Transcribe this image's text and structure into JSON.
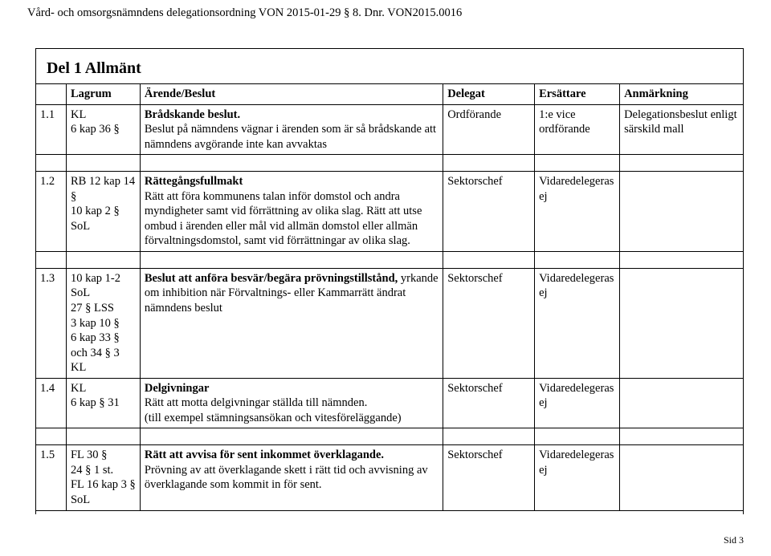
{
  "header_text": "Vård- och omsorgsnämndens delegationsordning VON 2015-01-29 § 8.  Dnr.  VON2015.0016",
  "section_title": "Del 1 Allmänt",
  "page_number": "Sid 3",
  "columns": {
    "c1": "",
    "c2": "Lagrum",
    "c3": "Ärende/Beslut",
    "c4": "Delegat",
    "c5": "Ersättare",
    "c6": "Anmärkning"
  },
  "rows": [
    {
      "num": "1.1",
      "lagrum": "KL\n6 kap 36 §",
      "title": "Brådskande beslut.",
      "body": "Beslut på nämndens vägnar i ärenden som är så brådskande att nämndens avgörande inte kan avvaktas",
      "delegat": "Ordförande",
      "ersattare": "1:e vice ordförande",
      "anmarkning": "Delegationsbeslut enligt särskild mall"
    },
    {
      "num": "1.2",
      "lagrum": "RB 12 kap 14 §\n10 kap 2 § SoL",
      "title": "Rättegångsfullmakt",
      "body": "Rätt att föra kommunens talan inför domstol och andra myndigheter samt vid förrättning av olika slag. Rätt att utse ombud i ärenden eller mål vid allmän domstol eller allmän förvaltningsdomstol, samt vid förrättningar av olika slag.",
      "delegat": "Sektorschef",
      "ersattare": "Vidaredelegeras ej",
      "anmarkning": ""
    },
    {
      "num": "1.3",
      "lagrum": "10 kap 1-2 SoL\n27 § LSS\n3 kap 10 §\n6 kap 33 § och 34 § 3 KL",
      "title": "Beslut att anföra besvär/begära prövningstillstånd,",
      "body": " yrkande om inhibition när Förvaltnings- eller Kammarrätt ändrat nämndens beslut",
      "delegat": "Sektorschef",
      "ersattare": "Vidaredelegeras ej",
      "anmarkning": ""
    },
    {
      "num": "1.4",
      "lagrum": "KL\n6 kap § 31",
      "title": "Delgivningar",
      "body": "Rätt att motta delgivningar ställda till nämnden.\n(till exempel stämningsansökan och vitesföreläggande)",
      "delegat": "Sektorschef",
      "ersattare": "Vidaredelegeras ej",
      "anmarkning": ""
    },
    {
      "num": "1.5",
      "lagrum": "FL 30 §\n24 § 1 st.\nFL 16 kap 3 § SoL",
      "title": "Rätt att avvisa för sent inkommet överklagande.",
      "body": "Prövning av att överklagande skett i rätt tid och avvisning av överklagande som kommit in för sent.",
      "delegat": "Sektorschef",
      "ersattare": "Vidaredelegeras ej",
      "anmarkning": ""
    }
  ]
}
